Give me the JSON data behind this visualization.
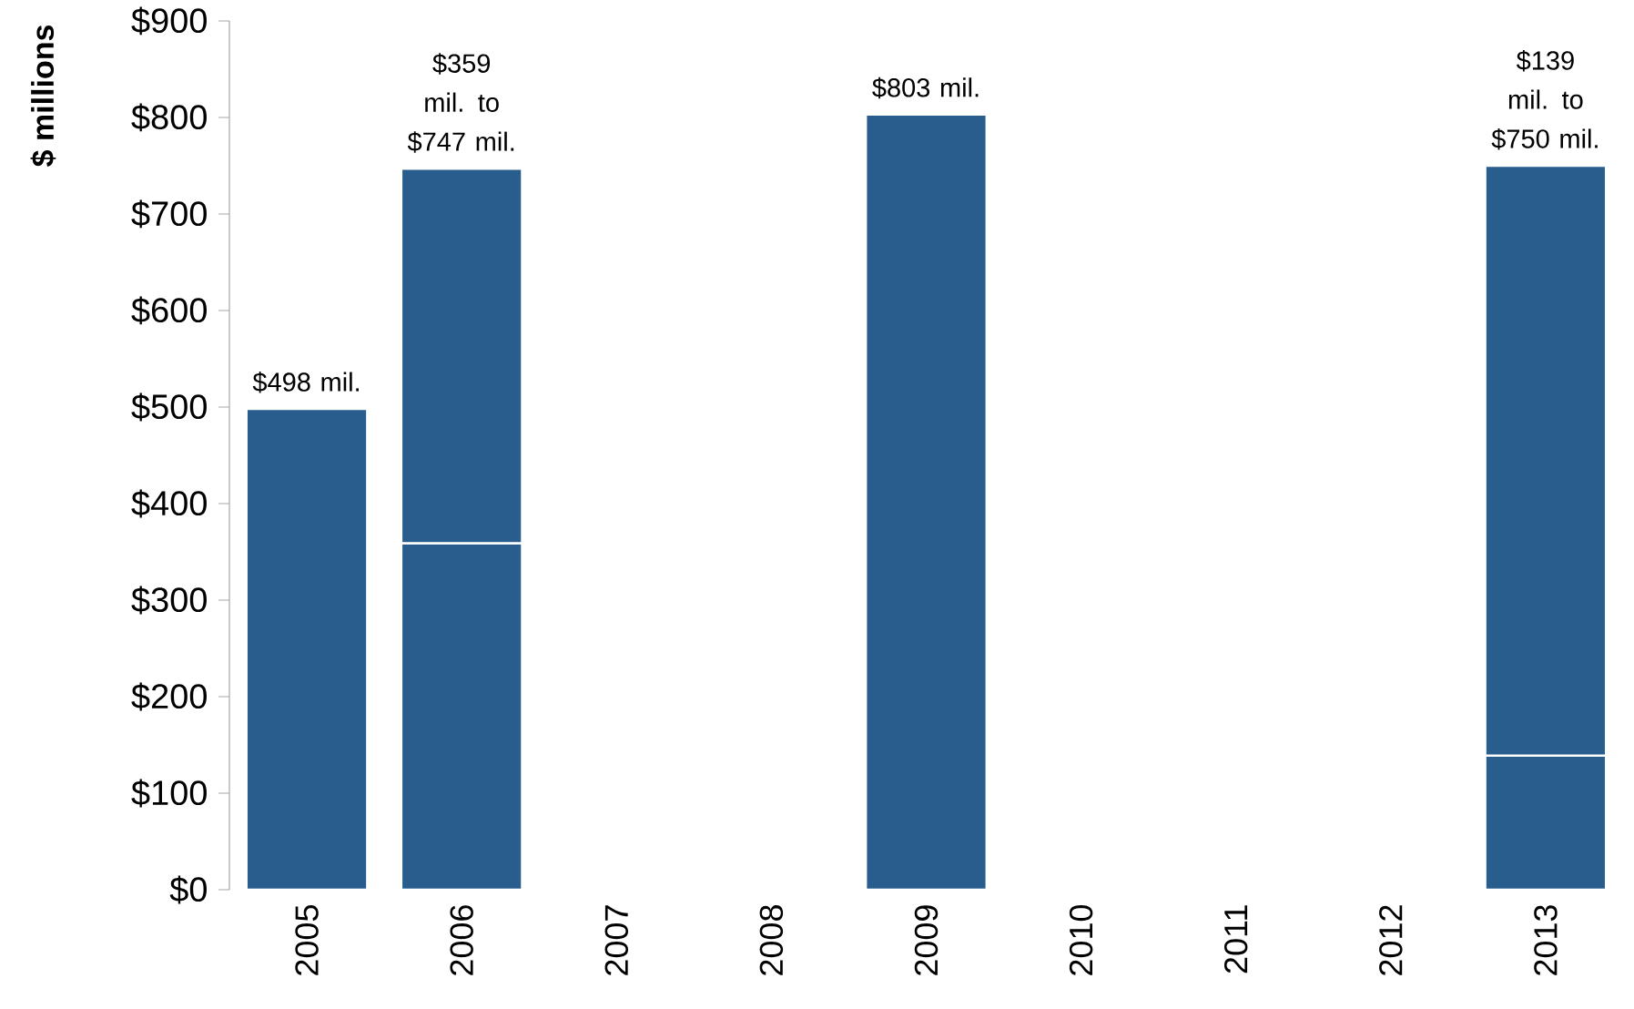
{
  "chart_data": {
    "type": "bar",
    "stacked": true,
    "ylabel": "$ millions",
    "categories": [
      "2005",
      "2006",
      "2007",
      "2008",
      "2009",
      "2010",
      "2011",
      "2012",
      "2013"
    ],
    "series": [
      {
        "color": "#295d8e",
        "values": [
          498,
          359,
          null,
          null,
          803,
          null,
          null,
          null,
          139
        ]
      },
      {
        "color": "#295d8e",
        "values": [
          null,
          388,
          null,
          null,
          null,
          null,
          null,
          null,
          611
        ]
      }
    ],
    "ylim": [
      0,
      900
    ],
    "yticks": [
      {
        "value": 0,
        "label": "$0"
      },
      {
        "value": 100,
        "label": "$100"
      },
      {
        "value": 200,
        "label": "$200"
      },
      {
        "value": 300,
        "label": "$300"
      },
      {
        "value": 400,
        "label": "$400"
      },
      {
        "value": 500,
        "label": "$500"
      },
      {
        "value": 600,
        "label": "$600"
      },
      {
        "value": 700,
        "label": "$700"
      },
      {
        "value": 800,
        "label": "$800"
      },
      {
        "value": 900,
        "label": "$900"
      }
    ],
    "annotations": [
      {
        "text": "$498 mil.",
        "x": "2005",
        "y": 498
      },
      {
        "text": "$359 mil. to $747 mil.",
        "x": "2006",
        "y": 747
      },
      {
        "text": "$803 mil.",
        "x": "2009",
        "y": 803
      },
      {
        "text": "$139 mil. to $750 mil.",
        "x": "2013",
        "y": 750
      }
    ],
    "grid": false
  }
}
